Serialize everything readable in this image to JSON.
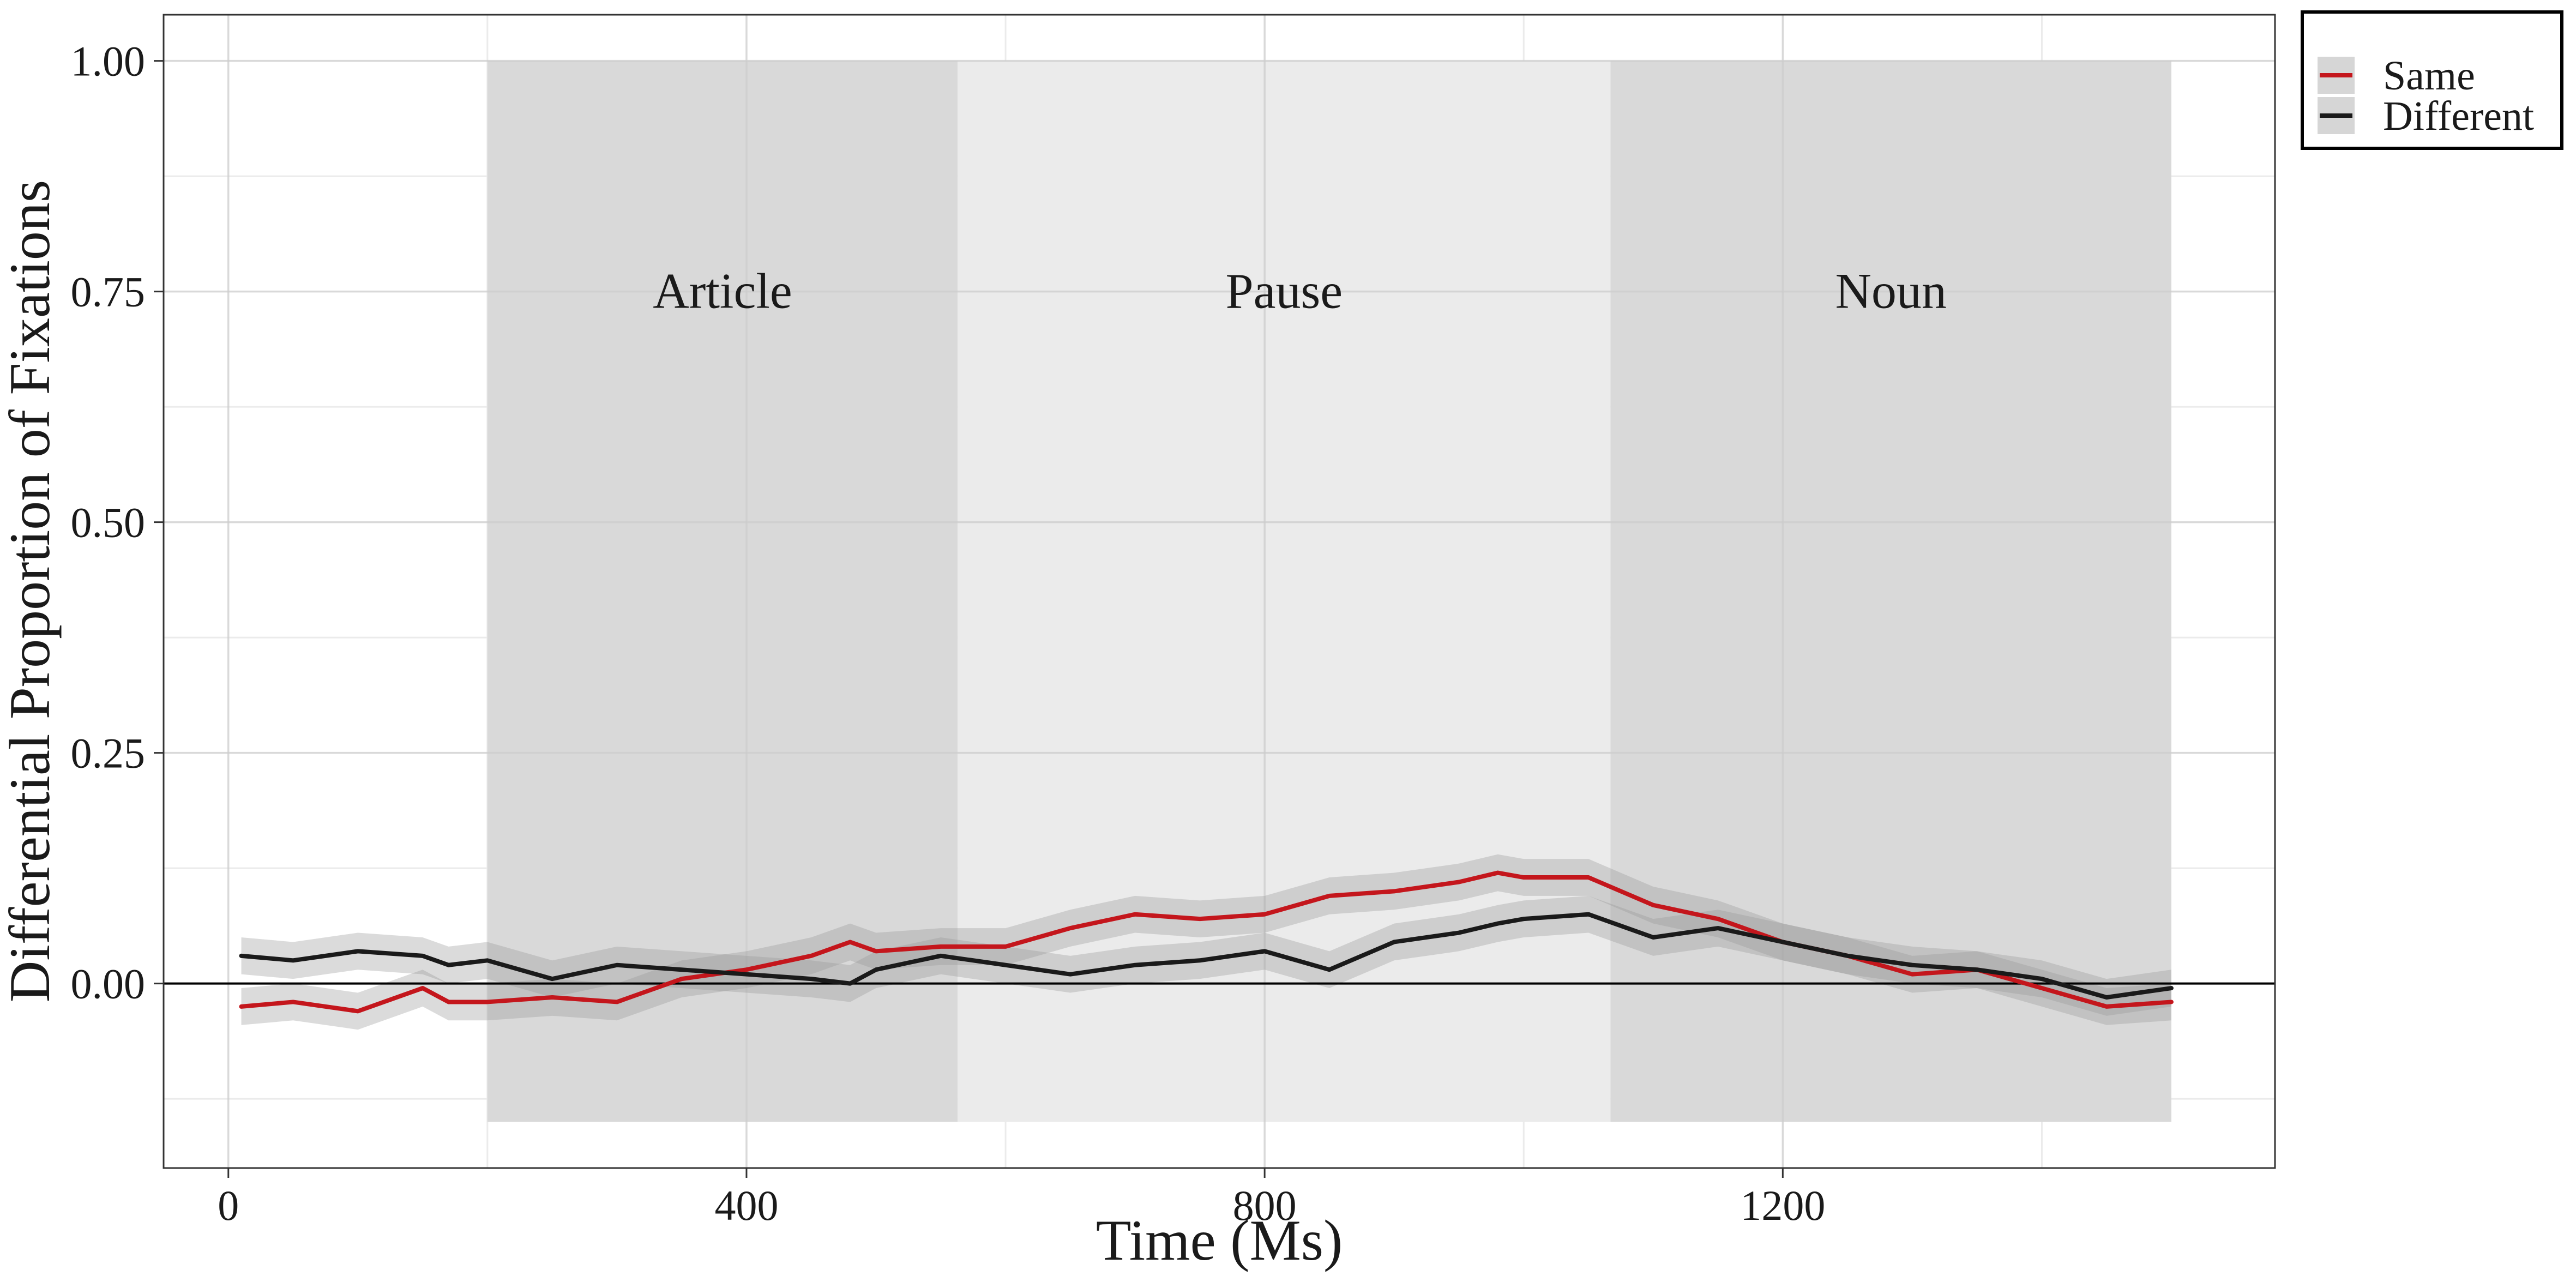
{
  "chart_data": {
    "type": "line",
    "title": "",
    "xlabel": "Time (Ms)",
    "ylabel": "Differential Proportion of Fixations",
    "xlim": [
      -50,
      1580
    ],
    "ylim": [
      -0.2,
      1.05
    ],
    "x_ticks": [
      0,
      400,
      800,
      1200
    ],
    "x_tick_labels": [
      "0",
      "400",
      "800",
      "1200"
    ],
    "y_ticks": [
      0.0,
      0.25,
      0.5,
      0.75,
      1.0
    ],
    "y_tick_labels": [
      "0.00",
      "0.25",
      "0.50",
      "0.75",
      "1.00"
    ],
    "grid": true,
    "reference_line_y": 0,
    "legend_position": "right-top",
    "regions": [
      {
        "label": "Article",
        "x_start": 200,
        "x_end": 563,
        "y_min": -0.15,
        "y_max": 1.0,
        "color": "#d9d9d9"
      },
      {
        "label": "Pause",
        "x_start": 563,
        "x_end": 1067,
        "y_min": -0.15,
        "y_max": 1.0,
        "color": "#ebebeb"
      },
      {
        "label": "Noun",
        "x_start": 1067,
        "x_end": 1500,
        "y_min": -0.15,
        "y_max": 1.0,
        "color": "#d9d9d9"
      }
    ],
    "region_label_y": 0.75,
    "series": [
      {
        "name": "Same",
        "color": "#c4161c",
        "x": [
          10,
          50,
          100,
          150,
          170,
          200,
          250,
          300,
          350,
          400,
          450,
          480,
          500,
          550,
          600,
          650,
          700,
          750,
          800,
          850,
          900,
          950,
          980,
          1000,
          1050,
          1100,
          1150,
          1200,
          1250,
          1300,
          1350,
          1400,
          1450,
          1500
        ],
        "y": [
          -0.025,
          -0.02,
          -0.03,
          -0.005,
          -0.02,
          -0.02,
          -0.015,
          -0.02,
          0.005,
          0.015,
          0.03,
          0.045,
          0.035,
          0.04,
          0.04,
          0.06,
          0.075,
          0.07,
          0.075,
          0.095,
          0.1,
          0.11,
          0.12,
          0.115,
          0.115,
          0.085,
          0.07,
          0.045,
          0.03,
          0.01,
          0.015,
          -0.005,
          -0.025,
          -0.02
        ],
        "ci_half_width": 0.02
      },
      {
        "name": "Different",
        "color": "#1a1a1a",
        "x": [
          10,
          50,
          100,
          150,
          170,
          200,
          250,
          300,
          350,
          400,
          450,
          480,
          500,
          550,
          600,
          650,
          700,
          750,
          800,
          850,
          900,
          950,
          980,
          1000,
          1050,
          1100,
          1150,
          1200,
          1250,
          1300,
          1350,
          1400,
          1450,
          1500
        ],
        "y": [
          0.03,
          0.025,
          0.035,
          0.03,
          0.02,
          0.025,
          0.005,
          0.02,
          0.015,
          0.01,
          0.005,
          0.0,
          0.015,
          0.03,
          0.02,
          0.01,
          0.02,
          0.025,
          0.035,
          0.015,
          0.045,
          0.055,
          0.065,
          0.07,
          0.075,
          0.05,
          0.06,
          0.045,
          0.03,
          0.02,
          0.015,
          0.005,
          -0.015,
          -0.005
        ],
        "ci_half_width": 0.02
      }
    ]
  }
}
